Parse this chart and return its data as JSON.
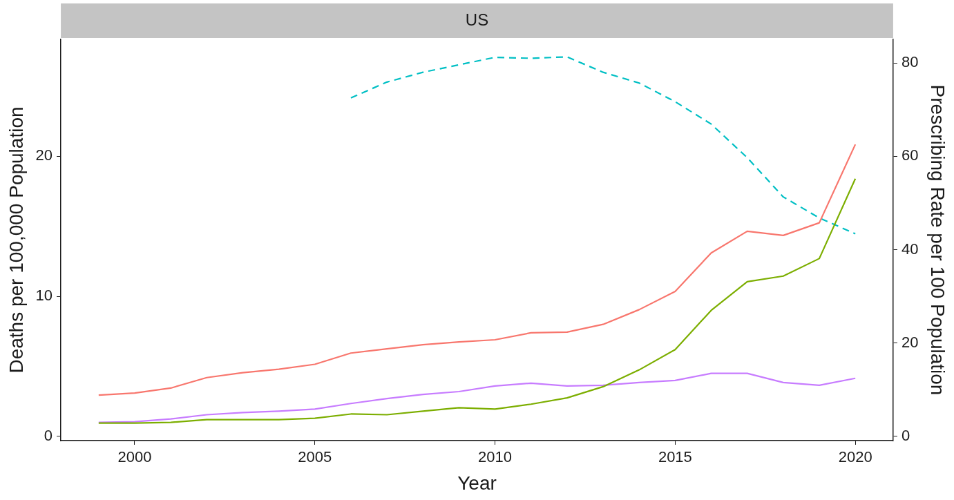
{
  "chart_data": {
    "type": "line",
    "title": "US",
    "xlabel": "Year",
    "ylabel": "Deaths per 100,000 Population",
    "y2label": "Prescribing Rate per 100 Population",
    "x": [
      1999,
      2000,
      2001,
      2002,
      2003,
      2004,
      2005,
      2006,
      2007,
      2008,
      2009,
      2010,
      2011,
      2012,
      2013,
      2014,
      2015,
      2016,
      2017,
      2018,
      2019,
      2020
    ],
    "series": [
      {
        "color": "#f8766d",
        "values": [
          2.95,
          3.1,
          3.45,
          4.2,
          4.55,
          4.8,
          5.15,
          5.95,
          6.25,
          6.55,
          6.75,
          6.9,
          7.4,
          7.45,
          8.0,
          9.05,
          10.35,
          13.1,
          14.65,
          14.35,
          15.25,
          20.85
        ]
      },
      {
        "color": "#7cae00",
        "values": [
          0.95,
          0.95,
          1.0,
          1.2,
          1.2,
          1.2,
          1.3,
          1.6,
          1.55,
          1.8,
          2.05,
          1.95,
          2.3,
          2.75,
          3.55,
          4.75,
          6.2,
          9.0,
          11.05,
          11.45,
          12.7,
          18.4
        ]
      },
      {
        "color": "#c77cff",
        "values": [
          1.0,
          1.05,
          1.25,
          1.55,
          1.7,
          1.8,
          1.95,
          2.35,
          2.7,
          3.0,
          3.2,
          3.6,
          3.8,
          3.6,
          3.65,
          3.85,
          4.0,
          4.5,
          4.5,
          3.85,
          3.65,
          4.15
        ]
      },
      {
        "color": "#00bfc4",
        "axis": "y2",
        "line_style": "dashed",
        "values": [
          null,
          null,
          null,
          null,
          null,
          null,
          null,
          72.5,
          75.9,
          78.0,
          79.6,
          81.2,
          81.0,
          81.3,
          78.0,
          75.7,
          71.7,
          66.9,
          59.7,
          51.3,
          46.8,
          43.4
        ]
      }
    ],
    "xlim": [
      1997.95,
      2021.05
    ],
    "xticks": [
      2000,
      2005,
      2010,
      2015,
      2020
    ],
    "ylim": [
      -0.3,
      28.35
    ],
    "yticks": [
      0,
      10,
      20
    ],
    "y2lim": [
      -0.9,
      85.05
    ],
    "y2ticks": [
      0,
      20,
      40,
      60,
      80
    ],
    "marker": "none"
  }
}
